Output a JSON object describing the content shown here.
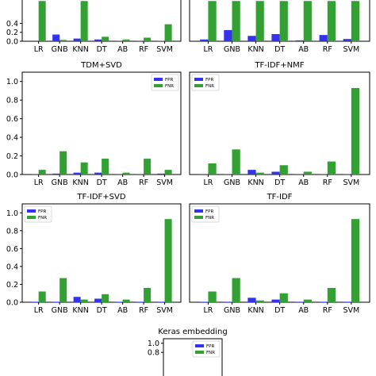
{
  "chart_data": [
    {
      "type": "bar",
      "title": "",
      "categories": [
        "LR",
        "GNB",
        "KNN",
        "DT",
        "AB",
        "RF",
        "SVM"
      ],
      "series": [
        {
          "name": "FPR",
          "values": [
            0.0,
            0.15,
            0.06,
            0.04,
            0.01,
            0.01,
            0.01
          ]
        },
        {
          "name": "FNR",
          "values": [
            0.9,
            0.03,
            0.9,
            0.1,
            0.04,
            0.08,
            0.38
          ]
        }
      ],
      "ylim": [
        0,
        1.1
      ],
      "yticks": [
        "0.0",
        "0.2",
        "0.4"
      ],
      "legend": "none",
      "colors": [
        "#3333ee",
        "#33a033"
      ]
    },
    {
      "type": "bar",
      "title": "",
      "categories": [
        "LR",
        "GNB",
        "KNN",
        "DT",
        "AB",
        "RF",
        "SVM"
      ],
      "series": [
        {
          "name": "FPR",
          "values": [
            0.04,
            0.25,
            0.12,
            0.16,
            0.02,
            0.14,
            0.05
          ]
        },
        {
          "name": "FNR",
          "values": [
            0.9,
            0.9,
            0.9,
            0.9,
            0.9,
            0.9,
            0.9
          ]
        }
      ],
      "ylim": [
        0,
        1.1
      ],
      "yticks": [],
      "legend": "none",
      "colors": [
        "#3333ee",
        "#33a033"
      ]
    },
    {
      "type": "bar",
      "title": "TDM+SVD",
      "categories": [
        "LR",
        "GNB",
        "KNN",
        "DT",
        "AB",
        "RF",
        "SVM"
      ],
      "series": [
        {
          "name": "FPR",
          "values": [
            0.005,
            0.01,
            0.02,
            0.02,
            0.005,
            0.005,
            0.01
          ]
        },
        {
          "name": "FNR",
          "values": [
            0.05,
            0.25,
            0.13,
            0.17,
            0.02,
            0.17,
            0.05
          ]
        }
      ],
      "ylim": [
        0,
        1.1
      ],
      "yticks": [
        "0.0",
        "0.2",
        "0.4",
        "0.6",
        "0.8",
        "1.0"
      ],
      "legend": "top-right",
      "colors": [
        "#3333ee",
        "#33a033"
      ]
    },
    {
      "type": "bar",
      "title": "TF-IDF+NMF",
      "categories": [
        "LR",
        "GNB",
        "KNN",
        "DT",
        "AB",
        "RF",
        "SVM"
      ],
      "series": [
        {
          "name": "FPR",
          "values": [
            0.005,
            0.005,
            0.05,
            0.03,
            0.005,
            0.005,
            0.005
          ]
        },
        {
          "name": "FNR",
          "values": [
            0.12,
            0.27,
            0.02,
            0.1,
            0.03,
            0.14,
            0.93
          ]
        }
      ],
      "ylim": [
        0,
        1.1
      ],
      "yticks": [],
      "legend": "top-left",
      "colors": [
        "#3333ee",
        "#33a033"
      ]
    },
    {
      "type": "bar",
      "title": "TF-IDF+SVD",
      "categories": [
        "LR",
        "GNB",
        "KNN",
        "DT",
        "AB",
        "RF",
        "SVM"
      ],
      "series": [
        {
          "name": "FPR",
          "values": [
            0.005,
            0.005,
            0.06,
            0.04,
            0.005,
            0.005,
            0.005
          ]
        },
        {
          "name": "FNR",
          "values": [
            0.12,
            0.27,
            0.03,
            0.09,
            0.03,
            0.16,
            0.93
          ]
        }
      ],
      "ylim": [
        0,
        1.1
      ],
      "yticks": [
        "0.0",
        "0.2",
        "0.4",
        "0.6",
        "0.8",
        "1.0"
      ],
      "legend": "top-left",
      "colors": [
        "#3333ee",
        "#33a033"
      ]
    },
    {
      "type": "bar",
      "title": "TF-IDF",
      "categories": [
        "LR",
        "GNB",
        "KNN",
        "DT",
        "AB",
        "RF",
        "SVM"
      ],
      "series": [
        {
          "name": "FPR",
          "values": [
            0.005,
            0.005,
            0.05,
            0.03,
            0.005,
            0.005,
            0.005
          ]
        },
        {
          "name": "FNR",
          "values": [
            0.12,
            0.27,
            0.02,
            0.1,
            0.03,
            0.16,
            0.93
          ]
        }
      ],
      "ylim": [
        0,
        1.1
      ],
      "yticks": [],
      "legend": "top-left",
      "colors": [
        "#3333ee",
        "#33a033"
      ]
    },
    {
      "type": "bar",
      "title": "Keras embedding",
      "categories": [],
      "series": [
        {
          "name": "FPR",
          "values": []
        },
        {
          "name": "FNR",
          "values": []
        }
      ],
      "ylim": [
        0,
        1.1
      ],
      "yticks": [
        "0.8",
        "1.0"
      ],
      "legend": "top-right",
      "colors": [
        "#3333ee",
        "#33a033"
      ]
    }
  ]
}
